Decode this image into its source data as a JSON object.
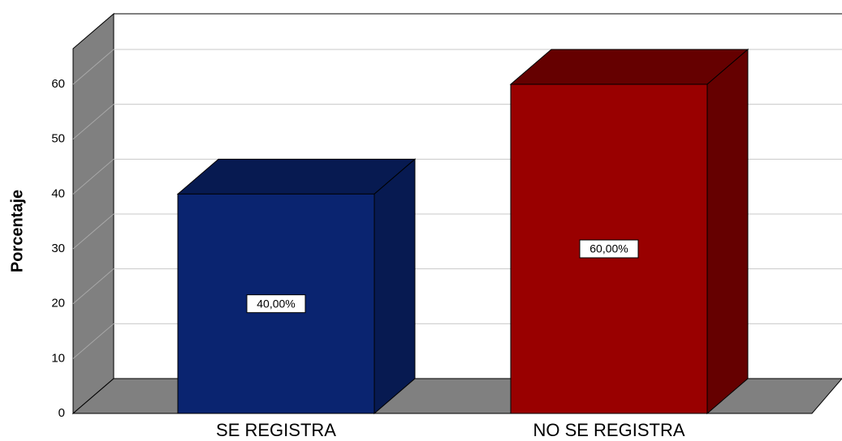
{
  "chart_data": {
    "type": "bar3d",
    "y_label": "Porcentaje",
    "categories": [
      "SE REGISTRA",
      "NO SE REGISTRA"
    ],
    "values": [
      40,
      60
    ],
    "value_labels": [
      "40,00%",
      "60,00%"
    ],
    "colors": [
      "#0a2470",
      "#990000"
    ],
    "ylim": [
      0,
      66.5
    ],
    "yticks": [
      0,
      10,
      20,
      30,
      40,
      50,
      60
    ],
    "grid": true
  }
}
